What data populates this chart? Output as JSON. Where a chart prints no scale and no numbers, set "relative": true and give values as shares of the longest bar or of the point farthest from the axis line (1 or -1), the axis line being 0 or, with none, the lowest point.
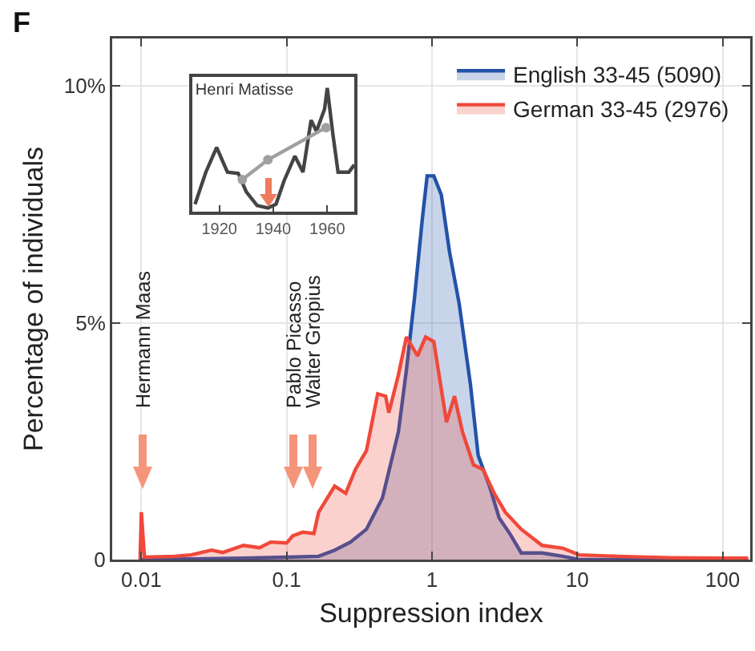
{
  "chart_data": [
    {
      "type": "area",
      "xlabel": "Suppression index",
      "ylabel": "Percentage of individuals",
      "log": "x",
      "xlim": [
        0.0063,
        155
      ],
      "xticks": [
        0.01,
        0.1,
        1,
        10,
        100
      ],
      "ylim": [
        0,
        11
      ],
      "yticks": [
        0,
        {
          "value": 5,
          "label": "5%"
        },
        {
          "value": 10,
          "label": "10%"
        }
      ],
      "grid": true,
      "legend": "top right",
      "annotations": [
        "F",
        "Hermann Maas",
        "Pablo Picasso",
        "Walter Gropius"
      ],
      "series": [
        {
          "name": "English 33-45 (5090)",
          "color": "#2352a8",
          "x": [
            0.01,
            0.05,
            0.1,
            0.166,
            0.214,
            0.275,
            0.354,
            0.456,
            0.588,
            0.667,
            0.757,
            0.859,
            0.927,
            1.03,
            1.16,
            1.32,
            1.54,
            1.84,
            2.08,
            2.49,
            2.9,
            3.45,
            4.12,
            5.73,
            7.96,
            10.3,
            150
          ],
          "values": [
            0,
            0.03,
            0.05,
            0.07,
            0.2,
            0.37,
            0.64,
            1.3,
            2.7,
            4.0,
            5.5,
            7.2,
            8.1,
            8.1,
            7.7,
            6.5,
            5.4,
            3.7,
            2.2,
            1.55,
            0.88,
            0.54,
            0.14,
            0.14,
            0.07,
            0,
            0
          ]
        },
        {
          "name": "German 33-45 (2976)",
          "color": "#f0483a",
          "x": [
            0.0098,
            0.01,
            0.0105,
            0.017,
            0.022,
            0.0305,
            0.0363,
            0.0505,
            0.065,
            0.0777,
            0.1,
            0.11,
            0.129,
            0.146,
            0.154,
            0.166,
            0.214,
            0.255,
            0.297,
            0.354,
            0.423,
            0.48,
            0.505,
            0.588,
            0.667,
            0.796,
            0.904,
            1.03,
            1.26,
            1.43,
            1.62,
            1.93,
            2.25,
            2.68,
            3.2,
            4.12,
            5.73,
            7.96,
            10.3,
            18.8,
            43.4,
            100,
            150
          ],
          "values": [
            0,
            1.0,
            0.05,
            0.07,
            0.1,
            0.2,
            0.15,
            0.3,
            0.25,
            0.37,
            0.35,
            0.5,
            0.58,
            0.56,
            0.55,
            1.0,
            1.55,
            1.4,
            1.9,
            2.3,
            3.5,
            3.45,
            3.1,
            3.9,
            4.7,
            4.3,
            4.7,
            4.6,
            2.9,
            3.45,
            2.7,
            2.0,
            1.9,
            1.4,
            1.0,
            0.64,
            0.3,
            0.24,
            0.1,
            0.07,
            0.04,
            0.03,
            0.03
          ]
        }
      ]
    },
    {
      "type": "line",
      "title": "Henri Matisse",
      "relative": true,
      "xlim": [
        1910,
        1970
      ],
      "xticks": [
        1920,
        1940,
        1960
      ],
      "tick_labels": "x",
      "series": [
        {
          "color": "#444444",
          "x": [
            1911,
            1915,
            1919,
            1923,
            1927,
            1930,
            1934,
            1938,
            1941,
            1944,
            1948,
            1951,
            1954,
            1956,
            1959,
            1960,
            1962,
            1964,
            1968,
            1970
          ],
          "values": [
            0.06,
            0.32,
            0.52,
            0.32,
            0.31,
            0.16,
            0.05,
            0.03,
            0.06,
            0.25,
            0.45,
            0.32,
            0.74,
            0.65,
            0.83,
            1,
            0.64,
            0.32,
            0.32,
            0.38
          ]
        },
        {
          "color": "#a0a0a0",
          "marker": "circle",
          "x": [
            1928.5,
            1938,
            1959.5
          ],
          "values": [
            0.26,
            0.42,
            0.68
          ]
        }
      ]
    }
  ]
}
